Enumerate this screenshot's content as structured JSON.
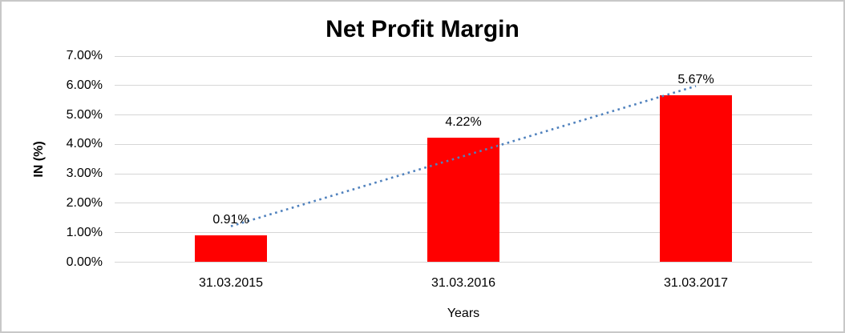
{
  "chart_data": {
    "type": "bar",
    "title": "Net Profit Margin",
    "xlabel": "Years",
    "ylabel": "IN (%)",
    "categories": [
      "31.03.2015",
      "31.03.2016",
      "31.03.2017"
    ],
    "values": [
      0.91,
      4.22,
      5.67
    ],
    "data_labels": [
      "0.91%",
      "4.22%",
      "5.67%"
    ],
    "ylim": [
      0,
      7
    ],
    "ytick_step": 1,
    "ytick_labels": [
      "0.00%",
      "1.00%",
      "2.00%",
      "3.00%",
      "4.00%",
      "5.00%",
      "6.00%",
      "7.00%"
    ],
    "grid": "horizontal-on",
    "legend": "none",
    "colors": {
      "bar": "#ff0000",
      "trendline": "#4f81bd",
      "gridline": "#d6d6d6",
      "text": "#000000",
      "frame_border": "#c8c8c8"
    },
    "trendline": {
      "type": "linear",
      "style": "dotted",
      "start_value": 1.22,
      "end_value": 5.98
    }
  }
}
